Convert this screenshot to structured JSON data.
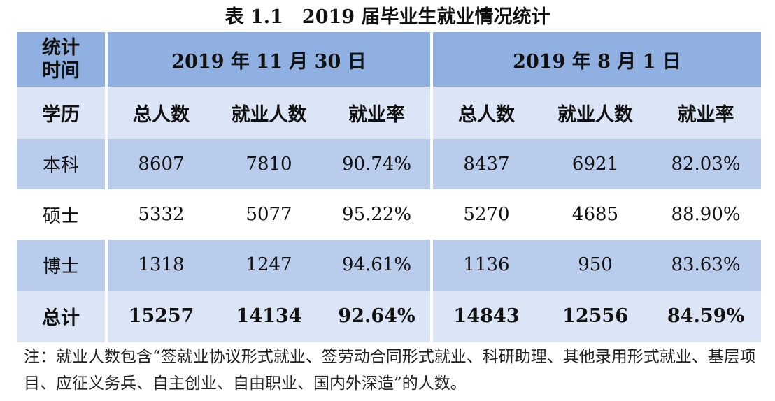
{
  "title": "表 1.1　2019 届毕业生就业情况统计",
  "table": {
    "time_label": "统计时间",
    "time_label_line1": "统计",
    "time_label_line2": "时间",
    "date_1": "2019 年 11 月 30 日",
    "date_2": "2019 年 8 月 1 日",
    "degree_label": "学历",
    "columns": [
      "总人数",
      "就业人数",
      "就业率",
      "总人数",
      "就业人数",
      "就业率"
    ],
    "rows": [
      {
        "degree": "本科",
        "values": [
          "8607",
          "7810",
          "90.74%",
          "8437",
          "6921",
          "82.03%"
        ]
      },
      {
        "degree": "硕士",
        "values": [
          "5332",
          "5077",
          "95.22%",
          "5270",
          "4685",
          "88.90%"
        ]
      },
      {
        "degree": "博士",
        "values": [
          "1318",
          "1247",
          "94.61%",
          "1136",
          "950",
          "83.63%"
        ]
      }
    ],
    "total": {
      "label": "总计",
      "values": [
        "15257",
        "14134",
        "92.64%",
        "14843",
        "12556",
        "84.59%"
      ]
    }
  },
  "note": "注：就业人数包含“签就业协议形式就业、签劳动合同形式就业、科研助理、其他录用形式就业、基层项目、应征义务兵、自主创业、自由职业、国内外深造”的人数。",
  "colors": {
    "header_blue": "#8fb0e0",
    "light_blue": "#dbe5f5",
    "mid_blue": "#b9ccec"
  }
}
